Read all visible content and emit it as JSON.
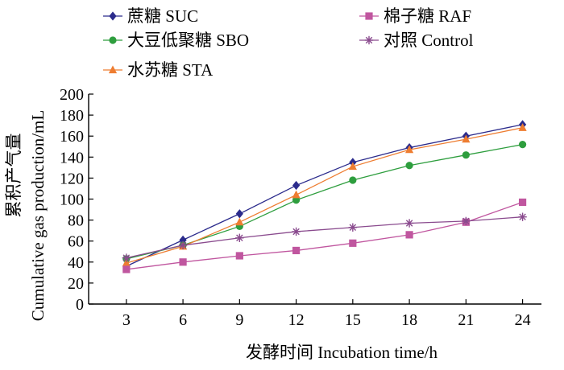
{
  "chart_data": {
    "type": "line",
    "title": "",
    "xlabel": "发酵时间  Incubation time/h",
    "ylabel_line1": "累积产气量",
    "ylabel_line2": "Cumulative gas production/mL",
    "x": [
      3,
      6,
      9,
      12,
      15,
      18,
      21,
      24
    ],
    "xlim": [
      1,
      25
    ],
    "ylim": [
      0,
      200
    ],
    "yticks": [
      0,
      20,
      40,
      60,
      80,
      100,
      120,
      140,
      160,
      180,
      200
    ],
    "grid": false,
    "legend_position": "top",
    "series": [
      {
        "name": "蔗糖  SUC",
        "marker": "diamond",
        "color": "#2b2b8c",
        "values": [
          36,
          61,
          86,
          113,
          135,
          149,
          160,
          171
        ]
      },
      {
        "name": "大豆低聚糖  SBO",
        "marker": "circle",
        "color": "#2e9e3e",
        "values": [
          43,
          56,
          74,
          99,
          118,
          132,
          142,
          152
        ]
      },
      {
        "name": "水苏糖  STA",
        "marker": "triangle",
        "color": "#ee7d31",
        "values": [
          39,
          55,
          78,
          104,
          131,
          147,
          157,
          168
        ]
      },
      {
        "name": "棉子糖  RAF",
        "marker": "square",
        "color": "#c0569f",
        "values": [
          33,
          40,
          46,
          51,
          58,
          66,
          78,
          97
        ]
      },
      {
        "name": "对照  Control",
        "marker": "star",
        "color": "#8a4b8e",
        "values": [
          44,
          56,
          63,
          69,
          73,
          77,
          79,
          83
        ]
      }
    ]
  }
}
